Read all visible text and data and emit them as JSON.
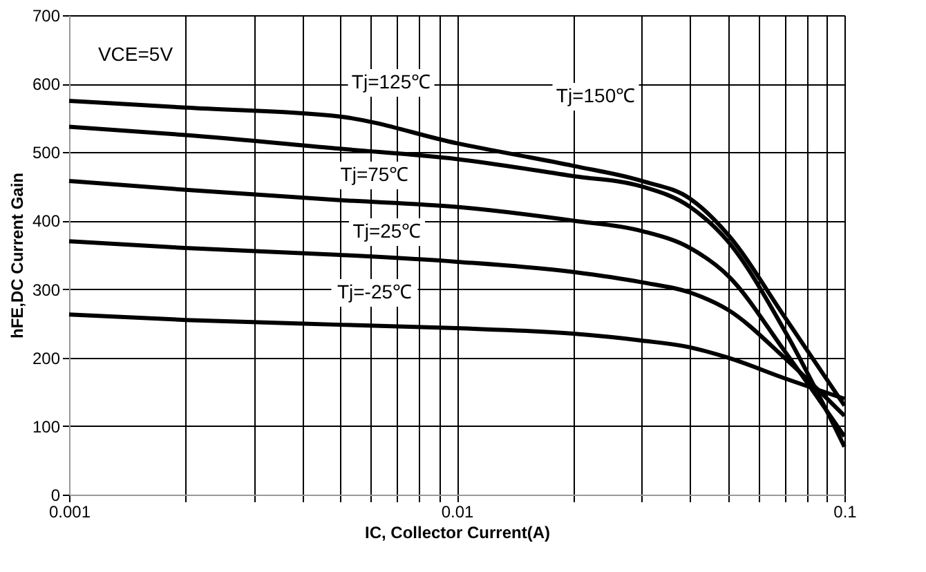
{
  "chart_data": {
    "type": "line",
    "xlabel": "IC, Collector Current(A)",
    "ylabel": "hFE,DC Current Gain",
    "log": "x",
    "grid": true,
    "legend": false,
    "marker": "none",
    "line_style": "solid",
    "xlim": [
      0.001,
      0.1
    ],
    "ylim": [
      0,
      700
    ],
    "xticks": [
      0.001,
      {
        "value": 0.002,
        "label": null
      },
      {
        "value": 0.003,
        "label": null
      },
      {
        "value": 0.004,
        "label": null
      },
      {
        "value": 0.005,
        "label": null
      },
      {
        "value": 0.006,
        "label": null
      },
      {
        "value": 0.007,
        "label": null
      },
      {
        "value": 0.008,
        "label": null
      },
      {
        "value": 0.009,
        "label": null
      },
      0.01,
      {
        "value": 0.02,
        "label": null
      },
      {
        "value": 0.03,
        "label": null
      },
      {
        "value": 0.04,
        "label": null
      },
      {
        "value": 0.05,
        "label": null
      },
      {
        "value": 0.06,
        "label": null
      },
      {
        "value": 0.07,
        "label": null
      },
      {
        "value": 0.08,
        "label": null
      },
      {
        "value": 0.09,
        "label": null
      },
      0.1
    ],
    "yticks": [
      0,
      100,
      200,
      300,
      400,
      500,
      600,
      700
    ],
    "x": [
      0.001,
      0.002,
      0.005,
      0.01,
      0.02,
      0.03,
      0.04,
      0.05,
      0.07,
      0.1
    ],
    "series": [
      {
        "color": "#000000",
        "values": [
          575,
          565,
          552,
          513,
          480,
          458,
          432,
          380,
          260,
          130
        ]
      },
      {
        "color": "#000000",
        "values": [
          537,
          525,
          505,
          490,
          465,
          450,
          420,
          370,
          240,
          70
        ]
      },
      {
        "color": "#000000",
        "values": [
          458,
          445,
          430,
          420,
          400,
          385,
          360,
          320,
          210,
          85
        ]
      },
      {
        "color": "#000000",
        "values": [
          370,
          360,
          350,
          340,
          325,
          310,
          295,
          270,
          200,
          115
        ]
      },
      {
        "color": "#000000",
        "values": [
          263,
          255,
          248,
          243,
          235,
          225,
          215,
          200,
          170,
          140
        ]
      }
    ],
    "annotations": [
      "VCE=5V",
      "Tj=125℃",
      "Tj=150℃",
      "Tj=75℃",
      "Tj=25℃",
      "Tj=-25℃"
    ]
  }
}
